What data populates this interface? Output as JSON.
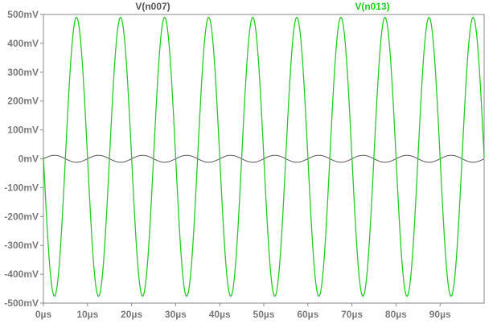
{
  "chart_data": {
    "type": "line",
    "x_unit": "µs",
    "y_unit": "mV",
    "xlim": [
      0,
      100
    ],
    "ylim": [
      -500,
      500
    ],
    "x_ticks": [
      0,
      10,
      20,
      30,
      40,
      50,
      60,
      70,
      80,
      90
    ],
    "x_tick_labels": [
      "0µs",
      "10µs",
      "20µs",
      "30µs",
      "40µs",
      "50µs",
      "60µs",
      "70µs",
      "80µs",
      "90µs"
    ],
    "y_ticks": [
      500,
      400,
      300,
      200,
      100,
      0,
      -100,
      -200,
      -300,
      -400,
      -500
    ],
    "y_tick_labels": [
      "500mV",
      "400mV",
      "300mV",
      "200mV",
      "100mV",
      "0mV",
      "-100mV",
      "-200mV",
      "-300mV",
      "-400mV",
      "-500mV"
    ],
    "grid": false,
    "legend_position": "top",
    "series": [
      {
        "name": "V(n007)",
        "color": "#555555",
        "waveform": "sine",
        "amplitude_mV": 12,
        "offset_mV": 0,
        "period_us": 10,
        "phase_deg": 0,
        "peak_times_us": [
          2.5,
          12.5,
          22.5,
          32.5,
          42.5,
          52.5,
          62.5,
          72.5,
          82.5,
          92.5
        ]
      },
      {
        "name": "V(n013)",
        "color": "#22cc22",
        "waveform": "sine",
        "amplitude_mV": 483,
        "offset_mV": 7,
        "period_us": 10,
        "phase_deg": 180,
        "peak_times_us": [
          7.5,
          17.5,
          27.5,
          37.5,
          47.5,
          57.5,
          67.5,
          77.5,
          87.5,
          97.5
        ],
        "peak_value_mV": 490,
        "trough_value_mV": -476
      }
    ]
  }
}
